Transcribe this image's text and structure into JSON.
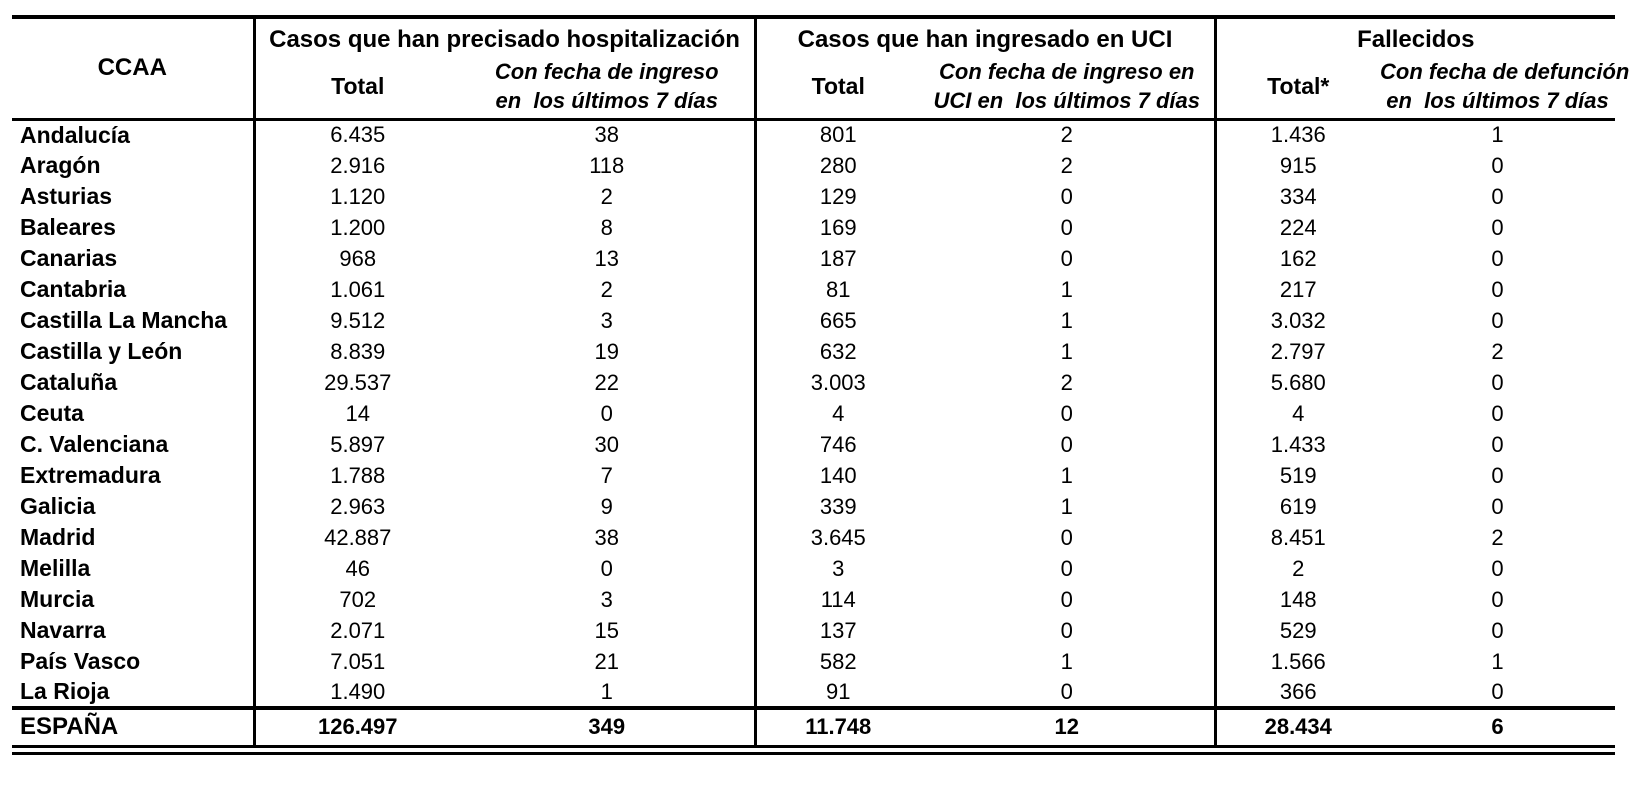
{
  "page": {
    "background_color": "#ffffff",
    "text_color": "#000000",
    "border_color": "#000000"
  },
  "table": {
    "header": {
      "ccaa_label": "CCAA",
      "groups": [
        {
          "title": "Casos que han precisado hospitalización",
          "total_label": "Total",
          "recent_line1": "Con fecha de ingreso",
          "recent_line2": "en  los últimos 7 días"
        },
        {
          "title": "Casos que han ingresado en UCI",
          "total_label": "Total",
          "recent_line1": "Con fecha de ingreso en",
          "recent_line2": "UCI en  los últimos 7 días"
        },
        {
          "title": "Fallecidos",
          "total_label": "Total*",
          "recent_line1": "Con fecha de defunción",
          "recent_line2": "en  los últimos 7 días"
        }
      ]
    },
    "rows": [
      {
        "ccaa": "Andalucía",
        "values": [
          "6.435",
          "38",
          "801",
          "2",
          "1.436",
          "1"
        ]
      },
      {
        "ccaa": "Aragón",
        "values": [
          "2.916",
          "118",
          "280",
          "2",
          "915",
          "0"
        ]
      },
      {
        "ccaa": "Asturias",
        "values": [
          "1.120",
          "2",
          "129",
          "0",
          "334",
          "0"
        ]
      },
      {
        "ccaa": "Baleares",
        "values": [
          "1.200",
          "8",
          "169",
          "0",
          "224",
          "0"
        ]
      },
      {
        "ccaa": "Canarias",
        "values": [
          "968",
          "13",
          "187",
          "0",
          "162",
          "0"
        ]
      },
      {
        "ccaa": "Cantabria",
        "values": [
          "1.061",
          "2",
          "81",
          "1",
          "217",
          "0"
        ]
      },
      {
        "ccaa": "Castilla La Mancha",
        "values": [
          "9.512",
          "3",
          "665",
          "1",
          "3.032",
          "0"
        ]
      },
      {
        "ccaa": "Castilla y León",
        "values": [
          "8.839",
          "19",
          "632",
          "1",
          "2.797",
          "2"
        ]
      },
      {
        "ccaa": "Cataluña",
        "values": [
          "29.537",
          "22",
          "3.003",
          "2",
          "5.680",
          "0"
        ]
      },
      {
        "ccaa": "Ceuta",
        "values": [
          "14",
          "0",
          "4",
          "0",
          "4",
          "0"
        ]
      },
      {
        "ccaa": "C. Valenciana",
        "values": [
          "5.897",
          "30",
          "746",
          "0",
          "1.433",
          "0"
        ]
      },
      {
        "ccaa": "Extremadura",
        "values": [
          "1.788",
          "7",
          "140",
          "1",
          "519",
          "0"
        ]
      },
      {
        "ccaa": "Galicia",
        "values": [
          "2.963",
          "9",
          "339",
          "1",
          "619",
          "0"
        ]
      },
      {
        "ccaa": "Madrid",
        "values": [
          "42.887",
          "38",
          "3.645",
          "0",
          "8.451",
          "2"
        ]
      },
      {
        "ccaa": "Melilla",
        "values": [
          "46",
          "0",
          "3",
          "0",
          "2",
          "0"
        ]
      },
      {
        "ccaa": "Murcia",
        "values": [
          "702",
          "3",
          "114",
          "0",
          "148",
          "0"
        ]
      },
      {
        "ccaa": "Navarra",
        "values": [
          "2.071",
          "15",
          "137",
          "0",
          "529",
          "0"
        ]
      },
      {
        "ccaa": "País Vasco",
        "values": [
          "7.051",
          "21",
          "582",
          "1",
          "1.566",
          "1"
        ]
      },
      {
        "ccaa": "La Rioja",
        "values": [
          "1.490",
          "1",
          "91",
          "0",
          "366",
          "0"
        ]
      }
    ],
    "total_row": {
      "ccaa": "ESPAÑA",
      "values": [
        "126.497",
        "349",
        "11.748",
        "12",
        "28.434",
        "6"
      ]
    }
  }
}
